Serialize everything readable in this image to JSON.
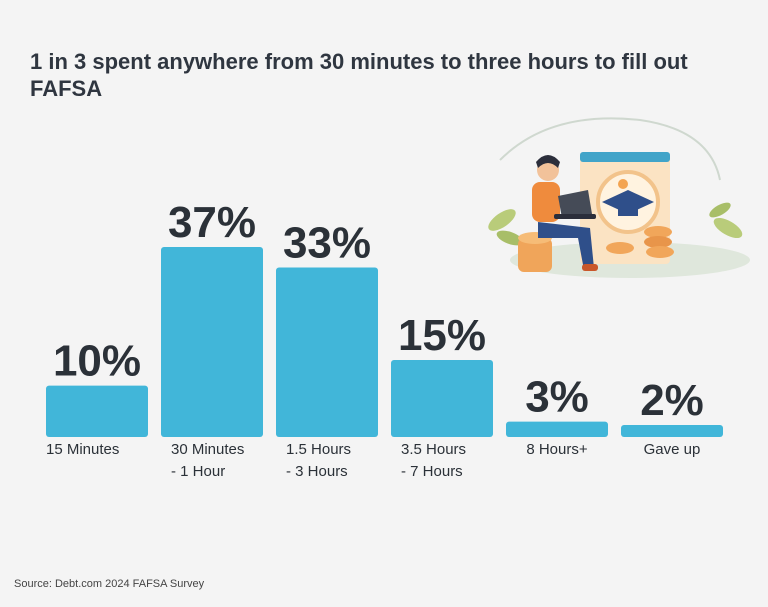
{
  "title": "1 in 3 spent anywhere from 30 minutes to three hours to fill out FAFSA",
  "source": "Source: Debt.com 2024 FAFSA Survey",
  "colors": {
    "bar": "#41b6d9",
    "background": "#f4f4f4",
    "text": "#2b3138"
  },
  "illustration": {
    "icon": "person-with-laptop-graduation-coins-illustration"
  },
  "chart_data": {
    "type": "bar",
    "categories": [
      [
        "15 Minutes"
      ],
      [
        "30 Minutes",
        "- 1 Hour"
      ],
      [
        "1.5 Hours",
        "- 3 Hours"
      ],
      [
        "3.5 Hours",
        "- 7 Hours"
      ],
      [
        "8 Hours+"
      ],
      [
        "Gave up"
      ]
    ],
    "values": [
      10,
      37,
      33,
      15,
      3,
      2
    ],
    "value_labels": [
      "10%",
      "37%",
      "33%",
      "15%",
      "3%",
      "2%"
    ],
    "unit": "%",
    "ylim": [
      0,
      37
    ],
    "grid": false,
    "legend": "none"
  }
}
